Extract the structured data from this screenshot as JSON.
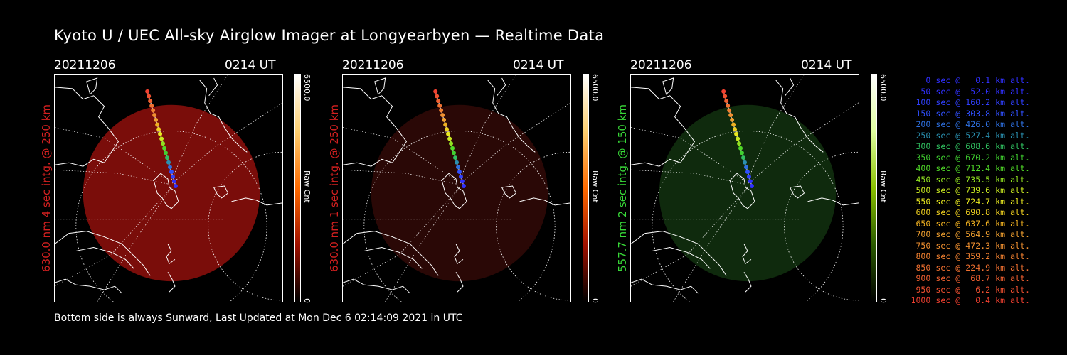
{
  "title": "Kyoto U / UEC All-sky Airglow Imager at Longyearbyen — Realtime Data",
  "footer": "Bottom side is always Sunward, Last Updated at Mon Dec  6 02:14:09 2021 in UTC",
  "panels": [
    {
      "date": "20211206",
      "time": "0214 UT",
      "side_label": "630.0 nm 4 sec intg. @ 250 km",
      "label_color": "#d42020",
      "cbar_max": "6500.0",
      "cbar_unit": "Raw Cnt",
      "cbar_min": "0",
      "glow_color": "#7a0d0a",
      "cbar_gradient": "linear-gradient(to bottom,#ffffff,#ffd070,#ff6a00,#a01000,#000)"
    },
    {
      "date": "20211206",
      "time": "0214 UT",
      "side_label": "630.0 nm 1 sec intg. @ 250 km",
      "label_color": "#d42020",
      "cbar_max": "6500.0",
      "cbar_unit": "Raw Cnt",
      "cbar_min": "0",
      "glow_color": "#2a0806",
      "cbar_gradient": "linear-gradient(to bottom,#ffffff,#ffd070,#ff6a00,#a01000,#000)"
    },
    {
      "date": "20211206",
      "time": "0214 UT",
      "side_label": "557.7 nm 2 sec intg. @ 150 km",
      "label_color": "#38d838",
      "cbar_max": "6500.0",
      "cbar_unit": "Raw Cnt",
      "cbar_min": "0",
      "glow_color": "#0f2a0d",
      "cbar_gradient": "linear-gradient(to bottom,#ffffff,#e0ffa0,#8ac000,#2a5a00,#000)"
    }
  ],
  "legend": [
    {
      "text": "   0 sec @   0.1 km alt.",
      "color": "#3030ff"
    },
    {
      "text": "  50 sec @  52.0 km alt.",
      "color": "#3030ff"
    },
    {
      "text": " 100 sec @ 160.2 km alt.",
      "color": "#3040ff"
    },
    {
      "text": " 150 sec @ 303.8 km alt.",
      "color": "#3050ff"
    },
    {
      "text": " 200 sec @ 426.0 km alt.",
      "color": "#2e70e0"
    },
    {
      "text": " 250 sec @ 527.4 km alt.",
      "color": "#2a90b0"
    },
    {
      "text": " 300 sec @ 608.6 km alt.",
      "color": "#30c060"
    },
    {
      "text": " 350 sec @ 670.2 km alt.",
      "color": "#40d030"
    },
    {
      "text": " 400 sec @ 712.4 km alt.",
      "color": "#50d828"
    },
    {
      "text": " 450 sec @ 735.5 km alt.",
      "color": "#90e020"
    },
    {
      "text": " 500 sec @ 739.6 km alt.",
      "color": "#c8e820"
    },
    {
      "text": " 550 sec @ 724.7 km alt.",
      "color": "#e8e820"
    },
    {
      "text": " 600 sec @ 690.8 km alt.",
      "color": "#f0d020"
    },
    {
      "text": " 650 sec @ 637.6 km alt.",
      "color": "#f0b020"
    },
    {
      "text": " 700 sec @ 564.9 km alt.",
      "color": "#f0a030"
    },
    {
      "text": " 750 sec @ 472.3 km alt.",
      "color": "#f09030"
    },
    {
      "text": " 800 sec @ 359.2 km alt.",
      "color": "#f08030"
    },
    {
      "text": " 850 sec @ 224.9 km alt.",
      "color": "#f07030"
    },
    {
      "text": " 900 sec @  68.7 km alt.",
      "color": "#f06030"
    },
    {
      "text": " 950 sec @   6.2 km alt.",
      "color": "#f05030"
    },
    {
      "text": "1000 sec @   0.4 km alt.",
      "color": "#f04030"
    }
  ]
}
